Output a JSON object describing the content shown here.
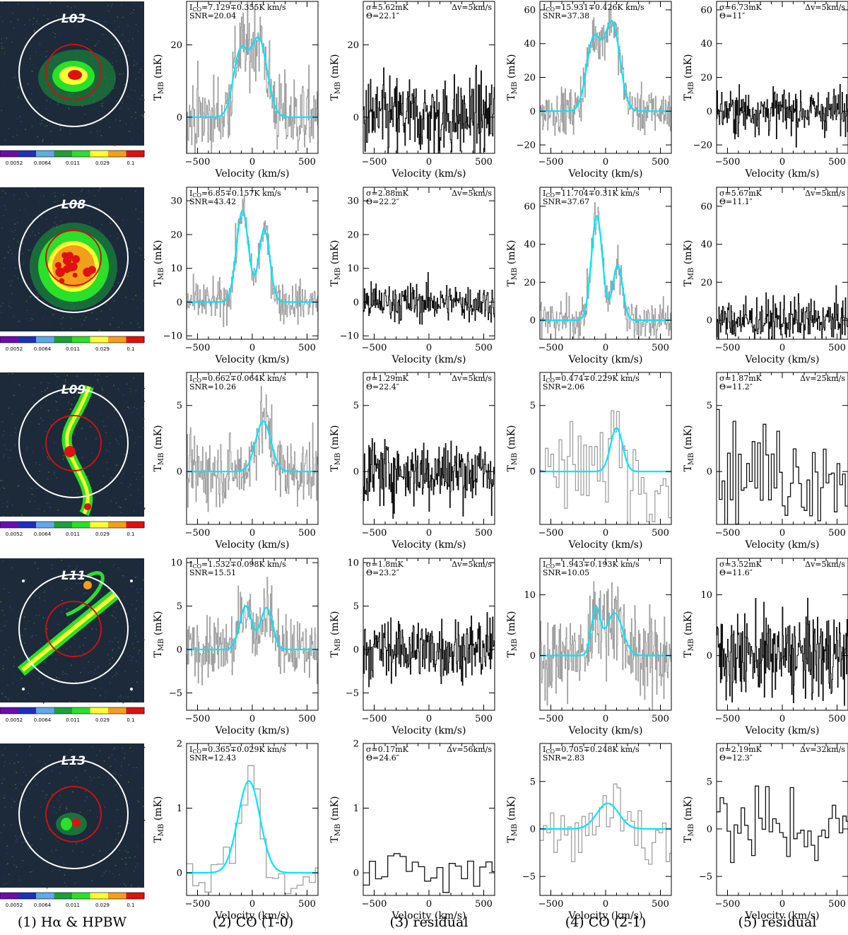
{
  "column_labels": [
    "(1) Hα & HPBW",
    "(2) CO (1-0)",
    "(3) residual",
    "(4) CO (2-1)",
    "(5) residual"
  ],
  "colorbar": {
    "colors": [
      "#6a0dad",
      "#1e2fb8",
      "#5fa9e8",
      "#1aa13a",
      "#2ae02a",
      "#ffff33",
      "#f2a01a",
      "#e01010"
    ],
    "tick_labels": [
      "0.0052",
      "0.0064",
      "0.011",
      "0.029",
      "0.1"
    ]
  },
  "colors": {
    "fit": "#00e5ff",
    "co_spectrum": "#a0a0a0",
    "residual": "#111111",
    "hpbw_outer": "#ffffff",
    "hpbw_inner": "#d01010"
  },
  "chart_data": [
    {
      "galaxy": "L03",
      "image": {
        "label": "L03"
      },
      "co10": {
        "type": "line",
        "annotation": [
          "I_CO=7.129∓0.355K km/s",
          "SNR=20.04"
        ],
        "xlabel": "Velocity (km/s)",
        "ylabel": "T_MB (mK)",
        "xlim": [
          -600,
          600
        ],
        "ylim": [
          -10,
          32
        ],
        "xticks": [
          -500,
          0,
          500
        ],
        "yticks": [
          0,
          20
        ],
        "channel_width": 5,
        "fit_components": [
          {
            "v": -110,
            "amp": 17.5,
            "sigma": 65
          },
          {
            "v": 60,
            "amp": 21.5,
            "sigma": 75
          }
        ],
        "noise_sigma": 5.6
      },
      "res10": {
        "type": "line",
        "annotation": [
          "σ=5.62mK",
          "Θ=22.1″"
        ],
        "annotation_right": "Δv=5km/s",
        "xlabel": "Velocity (km/s)",
        "ylabel": "T_MB (mK)",
        "xlim": [
          -600,
          600
        ],
        "ylim": [
          -10,
          32
        ],
        "xticks": [
          -500,
          0,
          500
        ],
        "yticks": [
          0,
          20
        ],
        "channel_width": 5,
        "noise_sigma": 5.62
      },
      "co21": {
        "type": "line",
        "annotation": [
          "I_CO=15.931∓0.426K km/s",
          "SNR=37.38"
        ],
        "xlabel": "Velocity (km/s)",
        "ylabel": "T_MB (mK)",
        "xlim": [
          -600,
          600
        ],
        "ylim": [
          -25,
          65
        ],
        "xticks": [
          -500,
          0,
          500
        ],
        "yticks": [
          -20,
          0,
          20,
          40,
          60
        ],
        "channel_width": 5,
        "fit_components": [
          {
            "v": -110,
            "amp": 42,
            "sigma": 65
          },
          {
            "v": 60,
            "amp": 52,
            "sigma": 70
          }
        ],
        "noise_sigma": 6.7
      },
      "res21": {
        "type": "line",
        "annotation": [
          "σ=6.73mK",
          "Θ=11″"
        ],
        "annotation_right": "Δv=5km/s",
        "xlabel": "Velocity (km/s)",
        "ylabel": "T_MB (mK)",
        "xlim": [
          -600,
          600
        ],
        "ylim": [
          -25,
          65
        ],
        "xticks": [
          -500,
          0,
          500
        ],
        "yticks": [
          -20,
          0,
          20,
          40,
          60
        ],
        "channel_width": 5,
        "noise_sigma": 6.73
      }
    },
    {
      "galaxy": "L08",
      "image": {
        "label": "L08"
      },
      "co10": {
        "type": "line",
        "annotation": [
          "I_CO=6.85∓0.157K km/s",
          "SNR=43.42"
        ],
        "xlabel": "Velocity (km/s)",
        "ylabel": "T_MB (mK)",
        "xlim": [
          -600,
          600
        ],
        "ylim": [
          -11,
          34
        ],
        "xticks": [
          -500,
          0,
          500
        ],
        "yticks": [
          -10,
          0,
          10,
          20,
          30
        ],
        "channel_width": 5,
        "fit_components": [
          {
            "v": -90,
            "amp": 27,
            "sigma": 55
          },
          {
            "v": 110,
            "amp": 21.5,
            "sigma": 50
          }
        ],
        "noise_sigma": 2.9
      },
      "res10": {
        "type": "line",
        "annotation": [
          "σ=2.88mK",
          "Θ=22.2″"
        ],
        "annotation_right": "Δv=5km/s",
        "xlabel": "Velocity (km/s)",
        "ylabel": "T_MB (mK)",
        "xlim": [
          -600,
          600
        ],
        "ylim": [
          -11,
          34
        ],
        "xticks": [
          -500,
          0,
          500
        ],
        "yticks": [
          -10,
          0,
          10,
          20,
          30
        ],
        "channel_width": 5,
        "noise_sigma": 2.88
      },
      "co21": {
        "type": "line",
        "annotation": [
          "I_CO=11.704∓0.31K km/s",
          "SNR=37.67"
        ],
        "xlabel": "Velocity (km/s)",
        "ylabel": "T_MB (mK)",
        "xlim": [
          -600,
          600
        ],
        "ylim": [
          -10,
          70
        ],
        "xticks": [
          -500,
          0,
          500
        ],
        "yticks": [
          0,
          20,
          40,
          60
        ],
        "channel_width": 5,
        "fit_components": [
          {
            "v": -80,
            "amp": 55,
            "sigma": 50
          },
          {
            "v": 110,
            "amp": 29,
            "sigma": 45
          }
        ],
        "noise_sigma": 5.7
      },
      "res21": {
        "type": "line",
        "annotation": [
          "σ=5.67mK",
          "Θ=11.1″"
        ],
        "annotation_right": "Δv=5km/s",
        "xlabel": "Velocity (km/s)",
        "ylabel": "T_MB (mK)",
        "xlim": [
          -600,
          600
        ],
        "ylim": [
          -10,
          70
        ],
        "xticks": [
          -500,
          0,
          500
        ],
        "yticks": [
          0,
          20,
          40,
          60
        ],
        "channel_width": 5,
        "noise_sigma": 5.67
      }
    },
    {
      "galaxy": "L09",
      "image": {
        "label": "L09"
      },
      "co10": {
        "type": "line",
        "annotation": [
          "I_CO=0.662∓0.064K km/s",
          "SNR=10.26"
        ],
        "xlabel": "Velocity (km/s)",
        "ylabel": "T_MB (mK)",
        "xlim": [
          -600,
          600
        ],
        "ylim": [
          -4,
          7.5
        ],
        "xticks": [
          -500,
          0,
          500
        ],
        "yticks": [
          0,
          5
        ],
        "channel_width": 5,
        "fit_components": [
          {
            "v": 100,
            "amp": 3.8,
            "sigma": 70
          }
        ],
        "noise_sigma": 1.3
      },
      "res10": {
        "type": "line",
        "annotation": [
          "σ=1.29mK",
          "Θ=22.4″"
        ],
        "annotation_right": "Δv=5km/s",
        "xlabel": "Velocity (km/s)",
        "ylabel": "T_MB (mK)",
        "xlim": [
          -600,
          600
        ],
        "ylim": [
          -4,
          7.5
        ],
        "xticks": [
          -500,
          0,
          500
        ],
        "yticks": [
          0,
          5
        ],
        "channel_width": 5,
        "noise_sigma": 1.29
      },
      "co21": {
        "type": "line",
        "annotation": [
          "I_CO=0.474∓0.229K km/s",
          "SNR=2.06"
        ],
        "xlabel": "Velocity (km/s)",
        "ylabel": "T_MB (mK)",
        "xlim": [
          -600,
          600
        ],
        "ylim": [
          -4,
          7.5
        ],
        "xticks": [
          -500,
          0,
          500
        ],
        "yticks": [
          0,
          5
        ],
        "channel_width": 25,
        "fit_components": [
          {
            "v": 100,
            "amp": 3.3,
            "sigma": 55
          }
        ],
        "noise_sigma": 1.8
      },
      "res21": {
        "type": "line",
        "annotation": [
          "σ=1.87mK",
          "Θ=11.2″"
        ],
        "annotation_right": "Δv=25km/s",
        "xlabel": "Velocity (km/s)",
        "ylabel": "T_MB (mK)",
        "xlim": [
          -600,
          600
        ],
        "ylim": [
          -4,
          7.5
        ],
        "xticks": [
          -500,
          0,
          500
        ],
        "yticks": [
          0,
          5
        ],
        "channel_width": 25,
        "noise_sigma": 1.87
      }
    },
    {
      "galaxy": "L11",
      "image": {
        "label": "L11"
      },
      "co10": {
        "type": "line",
        "annotation": [
          "I_CO=1.532∓0.098K km/s",
          "SNR=15.51"
        ],
        "xlabel": "Velocity (km/s)",
        "ylabel": "T_MB (mK)",
        "xlim": [
          -600,
          600
        ],
        "ylim": [
          -7,
          10.5
        ],
        "xticks": [
          -500,
          0,
          500
        ],
        "yticks": [
          -5,
          0,
          5,
          10
        ],
        "channel_width": 5,
        "fit_components": [
          {
            "v": -60,
            "amp": 5.0,
            "sigma": 55
          },
          {
            "v": 130,
            "amp": 4.8,
            "sigma": 55
          }
        ],
        "noise_sigma": 1.8
      },
      "res10": {
        "type": "line",
        "annotation": [
          "σ=1.8mK",
          "Θ=23.2″"
        ],
        "annotation_right": "Δv=5km/s",
        "xlabel": "Velocity (km/s)",
        "ylabel": "T_MB (mK)",
        "xlim": [
          -600,
          600
        ],
        "ylim": [
          -7,
          10.5
        ],
        "xticks": [
          -500,
          0,
          500
        ],
        "yticks": [
          -5,
          0,
          5,
          10
        ],
        "channel_width": 5,
        "noise_sigma": 1.8
      },
      "co21": {
        "type": "line",
        "annotation": [
          "I_CO=1.943∓0.193K km/s",
          "SNR=10.05"
        ],
        "xlabel": "Velocity (km/s)",
        "ylabel": "T_MB (mK)",
        "xlim": [
          -600,
          600
        ],
        "ylim": [
          -9,
          16
        ],
        "xticks": [
          -500,
          0,
          500
        ],
        "yticks": [
          0,
          10
        ],
        "channel_width": 5,
        "fit_components": [
          {
            "v": -90,
            "amp": 7.5,
            "sigma": 40
          },
          {
            "v": 80,
            "amp": 7.0,
            "sigma": 75
          }
        ],
        "noise_sigma": 3.5
      },
      "res21": {
        "type": "line",
        "annotation": [
          "σ=3.52mK",
          "Θ=11.6″"
        ],
        "annotation_right": "Δv=5km/s",
        "xlabel": "Velocity (km/s)",
        "ylabel": "T_MB (mK)",
        "xlim": [
          -600,
          600
        ],
        "ylim": [
          -9,
          16
        ],
        "xticks": [
          -500,
          0,
          500
        ],
        "yticks": [
          0,
          10
        ],
        "channel_width": 5,
        "noise_sigma": 3.52
      }
    },
    {
      "galaxy": "L13",
      "image": {
        "label": "L13"
      },
      "co10": {
        "type": "line",
        "annotation": [
          "I_CO=0.365∓0.029K km/s",
          "SNR=12.43"
        ],
        "xlabel": "Velocity (km/s)",
        "ylabel": "T_MB (mK)",
        "xlim": [
          -600,
          600
        ],
        "ylim": [
          -0.35,
          2.0
        ],
        "xticks": [
          -500,
          0,
          500
        ],
        "yticks": [
          0,
          1,
          2
        ],
        "channel_width": 56,
        "fit_components": [
          {
            "v": -30,
            "amp": 1.42,
            "sigma": 100
          }
        ],
        "noise_sigma": 0.17
      },
      "res10": {
        "type": "line",
        "annotation": [
          "σ=0.17mK",
          "Θ=24.6″"
        ],
        "annotation_right": "Δv=56km/s",
        "xlabel": "Velocity (km/s)",
        "ylabel": "T_MB (mK)",
        "xlim": [
          -600,
          600
        ],
        "ylim": [
          -0.35,
          2.0
        ],
        "xticks": [
          -500,
          0,
          500
        ],
        "yticks": [
          0,
          1,
          2
        ],
        "channel_width": 56,
        "noise_sigma": 0.17
      },
      "co21": {
        "type": "line",
        "annotation": [
          "I_CO=0.705∓0.248K km/s",
          "SNR=2.83"
        ],
        "xlabel": "Velocity (km/s)",
        "ylabel": "T_MB (mK)",
        "xlim": [
          -600,
          600
        ],
        "ylim": [
          -7,
          9
        ],
        "xticks": [
          -500,
          0,
          500
        ],
        "yticks": [
          -5,
          0,
          5
        ],
        "channel_width": 32,
        "fit_components": [
          {
            "v": 20,
            "amp": 2.7,
            "sigma": 100
          }
        ],
        "noise_sigma": 2.2
      },
      "res21": {
        "type": "line",
        "annotation": [
          "σ=2.19mK",
          "Θ=12.3″"
        ],
        "annotation_right": "Δv=32km/s",
        "xlabel": "Velocity (km/s)",
        "ylabel": "T_MB (mK)",
        "xlim": [
          -600,
          600
        ],
        "ylim": [
          -7,
          9
        ],
        "xticks": [
          -500,
          0,
          500
        ],
        "yticks": [
          -5,
          0,
          5
        ],
        "channel_width": 32,
        "noise_sigma": 2.19
      }
    }
  ]
}
